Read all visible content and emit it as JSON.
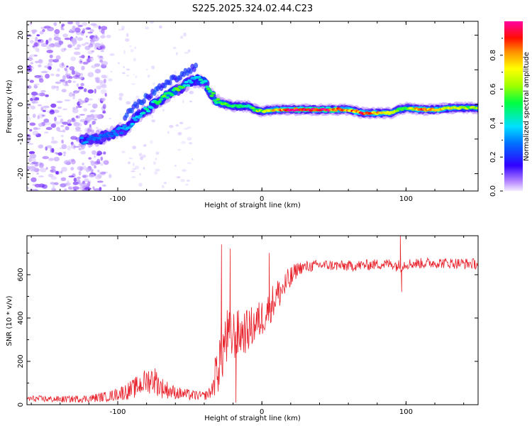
{
  "title": "S225.2025.324.02.44.C23",
  "chart_data": [
    {
      "type": "heatmap",
      "title": "S225.2025.324.02.44.C23",
      "xlabel": "Height of straight line (km)",
      "ylabel": "Frequency (Hz)",
      "xlim": [
        -163,
        150
      ],
      "ylim": [
        -25,
        24
      ],
      "xticks": [
        -100,
        0,
        100
      ],
      "xtick_labels": [
        "-100",
        "0",
        "100"
      ],
      "yticks": [
        -20,
        -10,
        0,
        10,
        20
      ],
      "ytick_labels": [
        "-20",
        "-10",
        "0",
        "10",
        "20"
      ],
      "colorbar": {
        "label": "Normalized spectral amplitude",
        "range": [
          0,
          1
        ],
        "ticks": [
          0.0,
          0.2,
          0.4,
          0.6,
          0.8
        ],
        "tick_labels": [
          "0.0",
          "0.2",
          "0.4",
          "0.6",
          "0.8"
        ]
      },
      "ridge": {
        "x": [
          -125,
          -110,
          -95,
          -85,
          -75,
          -65,
          -55,
          -50,
          -45,
          -40,
          -35,
          -30,
          -25,
          -20,
          -15,
          -10,
          -5,
          0,
          10,
          20,
          40,
          60,
          70,
          80,
          90,
          95,
          100,
          110,
          120,
          130,
          140,
          150
        ],
        "y": [
          -10.5,
          -9.5,
          -7,
          -3,
          0,
          3,
          5,
          6.5,
          7.2,
          6.5,
          3,
          0.5,
          0,
          -0.5,
          -0.5,
          -0.5,
          -1.5,
          -2,
          -1.5,
          -1.5,
          -1.5,
          -1.5,
          -2.5,
          -2.5,
          -2.5,
          -1.5,
          -1,
          -1.5,
          -1.5,
          -1,
          -1,
          -1
        ],
        "amplitude": [
          0.3,
          0.25,
          0.3,
          0.4,
          0.45,
          0.55,
          0.5,
          0.35,
          0.4,
          0.45,
          0.5,
          0.55,
          0.55,
          0.5,
          0.5,
          0.45,
          0.55,
          0.6,
          0.75,
          0.95,
          0.95,
          0.8,
          0.85,
          0.75,
          0.7,
          0.55,
          0.5,
          0.85,
          0.8,
          0.7,
          0.6,
          0.6
        ]
      }
    },
    {
      "type": "line",
      "xlabel": "Height of straight line (km)",
      "ylabel": "SNR (10 * v/v)",
      "xlim": [
        -163,
        150
      ],
      "ylim": [
        0,
        780
      ],
      "xticks": [
        -100,
        0,
        100
      ],
      "xtick_labels": [
        "-100",
        "0",
        "100"
      ],
      "yticks": [
        0,
        200,
        400,
        600
      ],
      "ytick_labels": [
        "0",
        "200",
        "400",
        "600"
      ],
      "series": [
        {
          "name": "SNR",
          "color": "#e8202a",
          "envelope_x": [
            -163,
            -140,
            -120,
            -105,
            -90,
            -80,
            -75,
            -70,
            -60,
            -50,
            -40,
            -35,
            -30,
            -25,
            -20,
            -15,
            -10,
            0,
            10,
            20,
            25,
            40,
            60,
            80,
            90,
            95,
            100,
            120,
            150
          ],
          "envelope_y": [
            28,
            25,
            28,
            40,
            70,
            110,
            120,
            80,
            55,
            45,
            40,
            60,
            200,
            300,
            320,
            330,
            340,
            400,
            500,
            580,
            630,
            645,
            640,
            648,
            650,
            640,
            650,
            655,
            650
          ],
          "noise_amplitude": [
            15,
            15,
            18,
            25,
            45,
            60,
            70,
            50,
            30,
            25,
            20,
            30,
            150,
            150,
            120,
            110,
            100,
            90,
            80,
            60,
            30,
            25,
            25,
            25,
            25,
            30,
            25,
            25,
            25
          ],
          "spikes": [
            {
              "x": -28,
              "y": 740
            },
            {
              "x": -22,
              "y": 720
            },
            {
              "x": -18,
              "y": 10
            },
            {
              "x": 5,
              "y": 700
            },
            {
              "x": 96,
              "y": 790
            },
            {
              "x": 97,
              "y": 520
            }
          ]
        }
      ]
    }
  ],
  "colors": {
    "line": "#e8202a",
    "noise": "#7a3cff"
  }
}
